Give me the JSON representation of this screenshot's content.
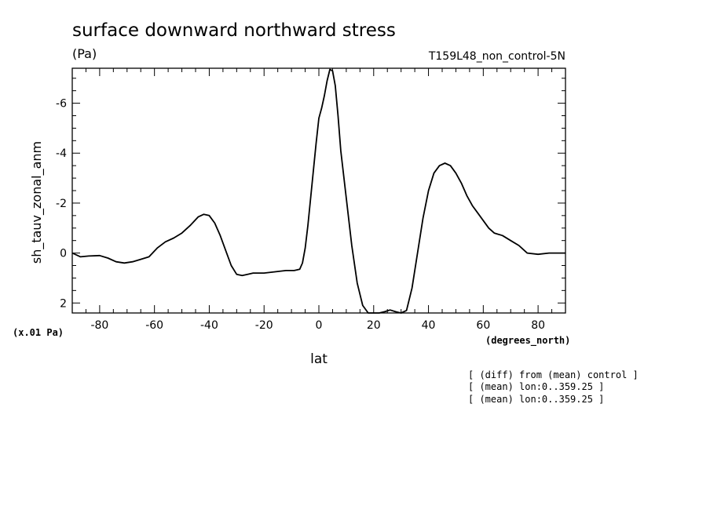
{
  "header": {
    "title": "surface downward northward stress",
    "units": "(Pa)",
    "run_label": "T159L48_non_control-5N"
  },
  "axes": {
    "ylabel": "sh_tauv_zonal_anm",
    "xlabel": "lat",
    "x_units": "(degrees_north)",
    "y_scale_note": "(x.01 Pa)"
  },
  "notes": [
    "[ (diff) from (mean) control ]",
    "[ (mean) lon:0..359.25 ]",
    "[ (mean) lon:0..359.25 ]"
  ],
  "chart_data": {
    "type": "line",
    "title": "surface downward northward stress",
    "xlabel": "lat",
    "ylabel": "sh_tauv_zonal_anm",
    "xlim": [
      -90,
      90
    ],
    "ylim": [
      2.4,
      -7.4
    ],
    "y_inverted": true,
    "x_ticks": [
      -80,
      -60,
      -40,
      -20,
      0,
      20,
      40,
      60,
      80
    ],
    "x_tick_labels": [
      "-80",
      "-60",
      "-40",
      "-20",
      "0",
      "20",
      "40",
      "60",
      "80"
    ],
    "y_ticks": [
      2,
      0,
      -2,
      -4,
      -6
    ],
    "y_tick_labels": [
      "2",
      "0",
      "-2",
      "-4",
      "-6"
    ],
    "grid": false,
    "series": [
      {
        "x": [
          -90,
          -87,
          -84,
          -80,
          -77,
          -74,
          -71,
          -68,
          -65,
          -62,
          -59,
          -56,
          -53,
          -50,
          -47,
          -44,
          -42,
          -40,
          -38,
          -36,
          -34,
          -32,
          -30,
          -28,
          -26,
          -24,
          -20,
          -16,
          -12,
          -9,
          -7,
          -6,
          -5,
          -4,
          -3,
          -2,
          -1,
          0,
          1,
          2,
          3,
          4,
          5,
          6,
          7,
          8,
          10,
          12,
          14,
          16,
          18,
          20,
          22,
          24,
          26,
          28,
          30,
          32,
          34,
          36,
          38,
          40,
          42,
          44,
          46,
          48,
          50,
          52,
          54,
          56,
          58,
          60,
          62,
          64,
          67,
          70,
          73,
          76,
          80,
          84,
          88,
          90
        ],
        "y": [
          0.0,
          0.15,
          0.12,
          0.1,
          0.2,
          0.35,
          0.4,
          0.35,
          0.25,
          0.15,
          -0.2,
          -0.45,
          -0.6,
          -0.8,
          -1.1,
          -1.45,
          -1.55,
          -1.5,
          -1.2,
          -0.7,
          -0.1,
          0.5,
          0.85,
          0.9,
          0.85,
          0.8,
          0.8,
          0.75,
          0.7,
          0.7,
          0.65,
          0.4,
          -0.2,
          -1.1,
          -2.2,
          -3.3,
          -4.4,
          -5.4,
          -5.8,
          -6.3,
          -6.9,
          -7.35,
          -7.3,
          -6.7,
          -5.5,
          -4.1,
          -2.2,
          -0.3,
          1.2,
          2.1,
          2.45,
          2.5,
          2.4,
          2.35,
          2.28,
          2.35,
          2.45,
          2.3,
          1.4,
          0.0,
          -1.4,
          -2.5,
          -3.2,
          -3.5,
          -3.6,
          -3.5,
          -3.2,
          -2.8,
          -2.3,
          -1.9,
          -1.6,
          -1.3,
          -1.0,
          -0.8,
          -0.7,
          -0.5,
          -0.3,
          0.0,
          0.05,
          0.0,
          0.0,
          0.0
        ]
      }
    ]
  }
}
